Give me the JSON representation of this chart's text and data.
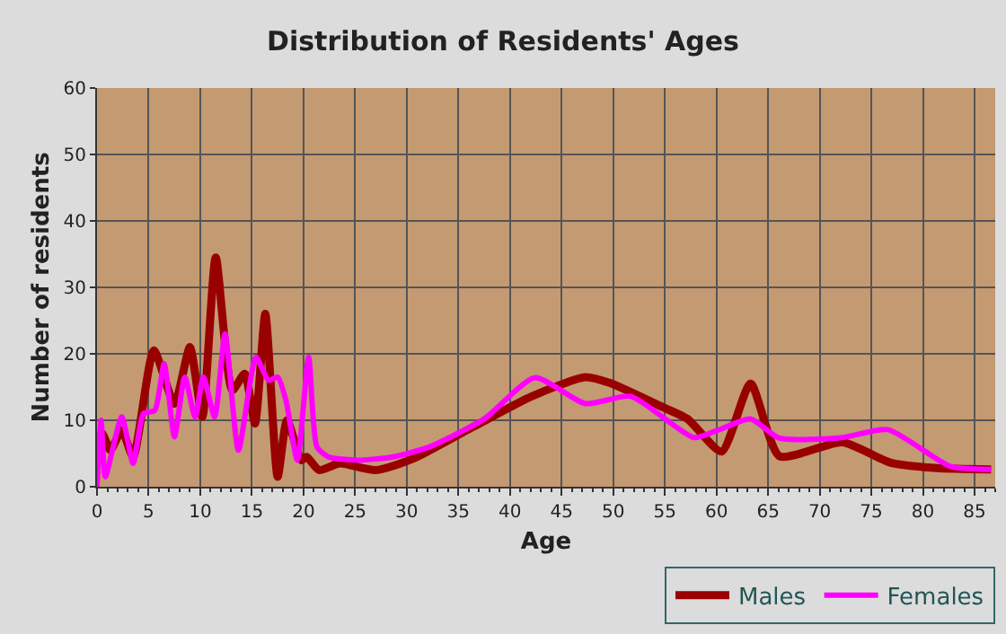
{
  "chart_data": {
    "type": "line",
    "title": "Distribution of Residents' Ages",
    "xlabel": "Age",
    "ylabel": "Number of residents",
    "xlim": [
      0,
      87
    ],
    "xticks": [
      0,
      5,
      10,
      15,
      20,
      25,
      30,
      35,
      40,
      45,
      50,
      55,
      60,
      65,
      70,
      75,
      80,
      85
    ],
    "ylim": [
      0,
      60
    ],
    "yticks": [
      0,
      10,
      20,
      30,
      40,
      50,
      60
    ],
    "grid": true,
    "legend": "bottom right",
    "marker": "none",
    "line_style": "solid",
    "series": [
      {
        "name": "Males",
        "color": "#990000",
        "x": [
          0,
          0.5,
          1.3,
          2.4,
          3.5,
          5.5,
          7.5,
          9,
          10.2,
          11.5,
          13.1,
          14.3,
          15.3,
          16.3,
          17.5,
          18.4,
          19.8,
          20.3,
          21.5,
          23.5,
          27,
          30.6,
          36.3,
          42.1,
          47.3,
          49.7,
          54.9,
          57.2,
          60.5,
          63.3,
          66.1,
          72.2,
          76.9,
          81.4,
          86.6
        ],
        "values": [
          6,
          8,
          5.5,
          8.5,
          4.5,
          20.5,
          12.5,
          21,
          10.5,
          34.5,
          14.5,
          17,
          9.5,
          26,
          1.5,
          10,
          4,
          4.5,
          2.5,
          3.5,
          2.5,
          4.2,
          8.9,
          13.6,
          16.5,
          15.6,
          11.9,
          10.2,
          5.3,
          15.5,
          4.6,
          6.7,
          3.6,
          2.8,
          2.6
        ]
      },
      {
        "name": "Females",
        "color": "#ff00ff",
        "x": [
          0,
          0.4,
          0.8,
          2.4,
          3.5,
          4.5,
          5.6,
          6.5,
          7.5,
          8.5,
          9.5,
          10.3,
          11.4,
          12.4,
          13.7,
          15.4,
          16.6,
          17.5,
          18.3,
          19.4,
          20.5,
          21.3,
          22.4,
          25.3,
          28.7,
          32.2,
          37.5,
          42.4,
          47.3,
          51.7,
          57.8,
          60.1,
          63.3,
          66.1,
          72.2,
          76.6,
          82.6,
          86.6
        ],
        "values": [
          0,
          10,
          1.5,
          10.5,
          3.5,
          11,
          11.5,
          18.5,
          7.5,
          16.5,
          10.5,
          16.5,
          10.5,
          23,
          5.5,
          19.5,
          16,
          16.5,
          13,
          4,
          19.5,
          6,
          4.5,
          4,
          4.5,
          6,
          10.2,
          16.4,
          12.5,
          13.6,
          7.4,
          8.5,
          10.2,
          7.3,
          7.4,
          8.6,
          3.1,
          2.6
        ]
      }
    ]
  }
}
